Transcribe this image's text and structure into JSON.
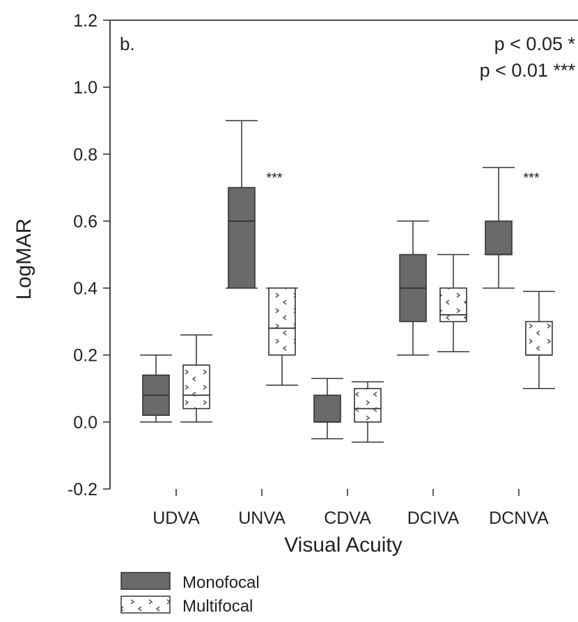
{
  "chart_data": {
    "type": "box",
    "panel_label": "b.",
    "xlabel": "Visual Acuity",
    "ylabel": "LogMAR",
    "ylim": [
      -0.2,
      1.2
    ],
    "yticks": [
      "-0.2",
      "0.0",
      "0.2",
      "0.4",
      "0.6",
      "0.8",
      "1.0",
      "1.2"
    ],
    "categories": [
      "UDVA",
      "UNVA",
      "CDVA",
      "DCIVA",
      "DCNVA"
    ],
    "significance_legend": [
      "p < 0.05 *",
      "p < 0.01 ***"
    ],
    "colors": {
      "monofocal": "#6a6a6a",
      "multifocal": "#ffffff",
      "stroke": "#333333"
    },
    "series": [
      {
        "name": "Monofocal",
        "boxes": [
          {
            "min": 0.0,
            "q1": 0.02,
            "median": 0.08,
            "q3": 0.14,
            "max": 0.2
          },
          {
            "min": 0.4,
            "q1": 0.4,
            "median": 0.6,
            "q3": 0.7,
            "max": 0.9
          },
          {
            "min": -0.05,
            "q1": 0.0,
            "median": 0.0,
            "q3": 0.08,
            "max": 0.13
          },
          {
            "min": 0.2,
            "q1": 0.3,
            "median": 0.4,
            "q3": 0.5,
            "max": 0.6
          },
          {
            "min": 0.4,
            "q1": 0.5,
            "median": 0.5,
            "q3": 0.6,
            "max": 0.76
          }
        ]
      },
      {
        "name": "Multifocal",
        "boxes": [
          {
            "min": 0.0,
            "q1": 0.04,
            "median": 0.08,
            "q3": 0.17,
            "max": 0.26
          },
          {
            "min": 0.11,
            "q1": 0.2,
            "median": 0.28,
            "q3": 0.4,
            "max": 0.4
          },
          {
            "min": -0.06,
            "q1": 0.0,
            "median": 0.04,
            "q3": 0.1,
            "max": 0.12
          },
          {
            "min": 0.21,
            "q1": 0.3,
            "median": 0.32,
            "q3": 0.4,
            "max": 0.5
          },
          {
            "min": 0.1,
            "q1": 0.2,
            "median": 0.2,
            "q3": 0.3,
            "max": 0.39
          }
        ]
      }
    ],
    "annotations": [
      {
        "category": "UNVA",
        "text": "***",
        "y": 0.74
      },
      {
        "category": "DCNVA",
        "text": "***",
        "y": 0.74
      }
    ],
    "legend": [
      {
        "label": "Monofocal"
      },
      {
        "label": "Multifocal"
      }
    ]
  }
}
